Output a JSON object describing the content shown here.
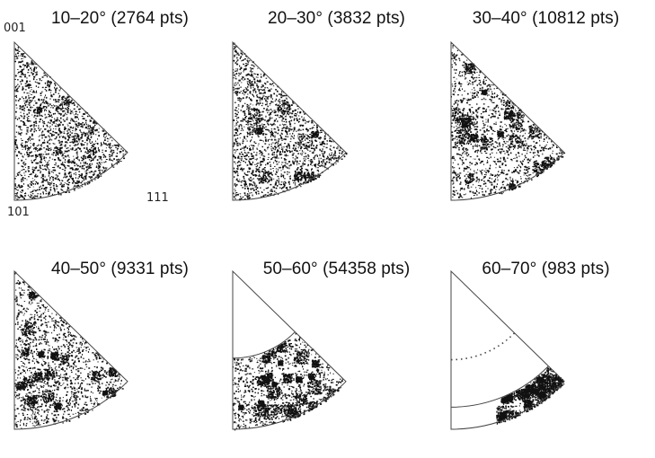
{
  "panels": [
    {
      "title": "10–20° (2764 pts)",
      "density": 0.38,
      "clusters": 0.05,
      "region": "full",
      "arcs": []
    },
    {
      "title": "20–30° (3832 pts)",
      "density": 0.5,
      "clusters": 0.1,
      "region": "full",
      "arcs": []
    },
    {
      "title": "30–40° (10812 pts)",
      "density": 0.62,
      "clusters": 0.35,
      "region": "full",
      "arcs": []
    },
    {
      "title": "40–50° (9331 pts)",
      "density": 0.62,
      "clusters": 0.3,
      "region": "full",
      "arcs": []
    },
    {
      "title": "50–60° (54358 pts)",
      "density": 0.75,
      "clusters": 0.45,
      "region": "outer-band-lower",
      "arcs": [
        "solid"
      ]
    },
    {
      "title": "60–70° (983 pts)",
      "density": 0.55,
      "clusters": 0.6,
      "region": "thin-band-bottom-right",
      "arcs": [
        "dotted",
        "solid"
      ]
    }
  ],
  "corner_labels": {
    "top": "001",
    "bottom_left": "101",
    "bottom_right": "111"
  },
  "colors": {
    "points": "#111111",
    "outline": "#444444",
    "background": "#ffffff"
  }
}
